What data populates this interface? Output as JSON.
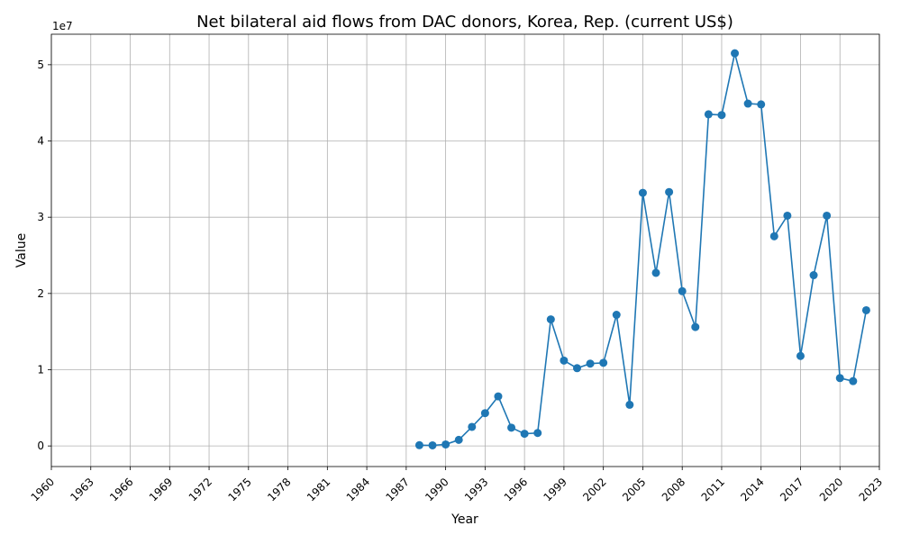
{
  "chart_data": {
    "type": "line",
    "title": "Net bilateral aid flows from DAC donors, Korea, Rep. (current US$)",
    "xlabel": "Year",
    "ylabel": "Value",
    "y_offset_label": "1e7",
    "xlim": [
      1960,
      2023
    ],
    "ylim": [
      -2700000,
      54000000
    ],
    "x_ticks": [
      1960,
      1963,
      1966,
      1969,
      1972,
      1975,
      1978,
      1981,
      1984,
      1987,
      1990,
      1993,
      1996,
      1999,
      2002,
      2005,
      2008,
      2011,
      2014,
      2017,
      2020,
      2023
    ],
    "x_tick_labels": [
      "1960",
      "1963",
      "1966",
      "1969",
      "1972",
      "1975",
      "1978",
      "1981",
      "1984",
      "1987",
      "1990",
      "1993",
      "1996",
      "1999",
      "2002",
      "2005",
      "2008",
      "2011",
      "2014",
      "2017",
      "2020",
      "2023"
    ],
    "y_ticks": [
      0,
      10000000,
      20000000,
      30000000,
      40000000,
      50000000
    ],
    "y_tick_labels": [
      "0",
      "1",
      "2",
      "3",
      "4",
      "5"
    ],
    "grid": true,
    "line_color": "#1f77b4",
    "x": [
      1988,
      1989,
      1990,
      1991,
      1992,
      1993,
      1994,
      1995,
      1996,
      1997,
      1998,
      1999,
      2000,
      2001,
      2002,
      2003,
      2004,
      2005,
      2006,
      2007,
      2008,
      2009,
      2010,
      2011,
      2012,
      2013,
      2014,
      2015,
      2016,
      2017,
      2018,
      2019,
      2020,
      2021,
      2022
    ],
    "values": [
      100000,
      80000,
      200000,
      800000,
      2500000,
      4300000,
      6500000,
      2400000,
      1600000,
      1700000,
      16600000,
      11200000,
      10200000,
      10800000,
      10900000,
      17200000,
      5400000,
      33200000,
      22700000,
      33300000,
      20300000,
      15600000,
      43500000,
      43400000,
      51500000,
      44900000,
      44800000,
      27500000,
      30200000,
      11800000,
      22400000,
      30200000,
      8900000,
      8500000,
      17800000
    ]
  }
}
